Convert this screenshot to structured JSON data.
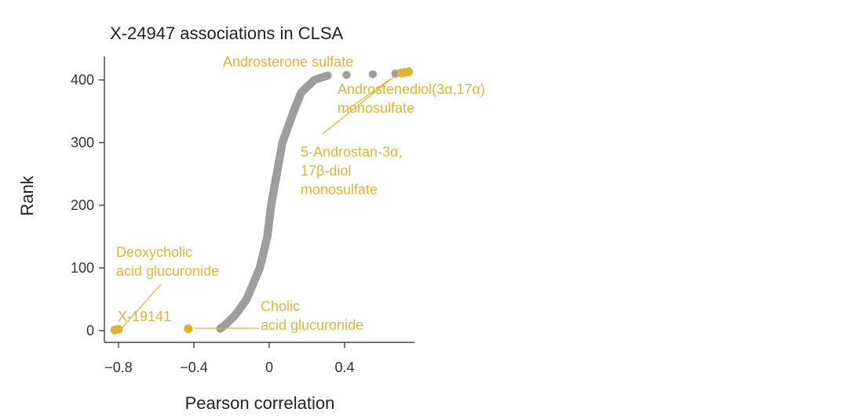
{
  "chart_data": {
    "type": "scatter",
    "title": "X-24947 associations in CLSA",
    "xlabel": "Pearson correlation",
    "ylabel": "Rank",
    "xlim": [
      -0.85,
      0.85
    ],
    "ylim": [
      -10,
      435
    ],
    "xticks": [
      -0.8,
      -0.4,
      0,
      0.4
    ],
    "xtick_labels": [
      "−0.8",
      "−0.4",
      "0",
      "0.4"
    ],
    "yticks": [
      0,
      100,
      200,
      300,
      400
    ],
    "ytick_labels": [
      "0",
      "100",
      "200",
      "300",
      "400"
    ],
    "grid": false,
    "colors": {
      "background_points": "#9e9e9e",
      "highlight": "#e0b431",
      "axis": "#222222"
    },
    "curve_anchors": [
      {
        "rank": 3,
        "r": -0.26
      },
      {
        "rank": 10,
        "r": -0.23
      },
      {
        "rank": 25,
        "r": -0.18
      },
      {
        "rank": 50,
        "r": -0.12
      },
      {
        "rank": 100,
        "r": -0.05
      },
      {
        "rank": 150,
        "r": -0.01
      },
      {
        "rank": 200,
        "r": 0.01
      },
      {
        "rank": 250,
        "r": 0.04
      },
      {
        "rank": 300,
        "r": 0.07
      },
      {
        "rank": 350,
        "r": 0.13
      },
      {
        "rank": 380,
        "r": 0.17
      },
      {
        "rank": 400,
        "r": 0.24
      },
      {
        "rank": 407,
        "r": 0.31
      }
    ],
    "gray_outliers": [
      {
        "r": 0.41,
        "rank": 408
      },
      {
        "r": 0.55,
        "rank": 409
      },
      {
        "r": 0.67,
        "rank": 410
      }
    ],
    "highlighted": [
      {
        "r": -0.82,
        "rank": 1
      },
      {
        "r": -0.8,
        "rank": 2
      },
      {
        "r": -0.43,
        "rank": 3
      },
      {
        "r": 0.7,
        "rank": 411
      },
      {
        "r": 0.72,
        "rank": 412
      },
      {
        "r": 0.74,
        "rank": 413
      }
    ],
    "annotations": [
      {
        "lines": [
          "Androsterone sulfate"
        ],
        "point": {
          "r": 0.74,
          "rank": 413
        }
      },
      {
        "lines": [
          "Androstenediol(3α,17α)",
          "monosulfate"
        ],
        "point": {
          "r": 0.72,
          "rank": 412
        }
      },
      {
        "lines": [
          "5-Androstan-3α,",
          "17β-diol",
          "monosulfate"
        ],
        "point": {
          "r": 0.7,
          "rank": 411
        }
      },
      {
        "lines": [
          "Deoxycholic",
          "acid glucuronide"
        ],
        "point": {
          "r": -0.8,
          "rank": 2
        }
      },
      {
        "lines": [
          "X-19141"
        ],
        "point": {
          "r": -0.82,
          "rank": 1
        }
      },
      {
        "lines": [
          "Cholic",
          "acid glucuronide"
        ],
        "point": {
          "r": -0.43,
          "rank": 3
        }
      }
    ]
  }
}
